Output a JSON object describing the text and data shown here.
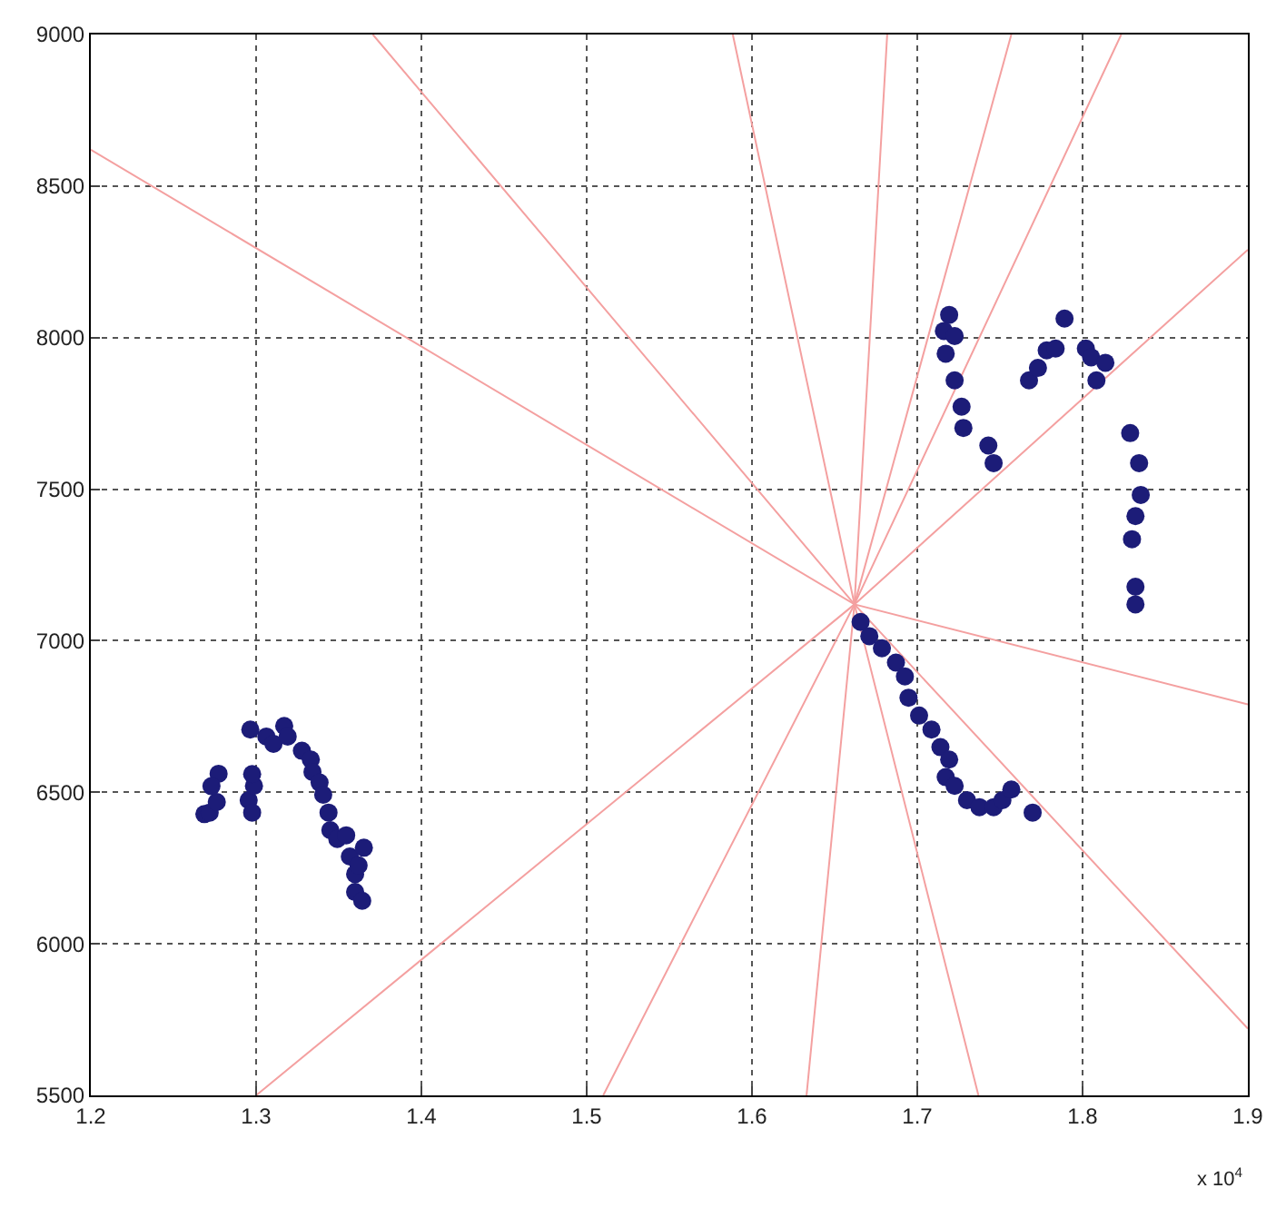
{
  "chart_data": {
    "type": "scatter",
    "grid": true,
    "xlim": [
      1.2,
      1.9
    ],
    "ylim": [
      5500,
      9000
    ],
    "xticks": [
      1.2,
      1.3,
      1.4,
      1.5,
      1.6,
      1.7,
      1.8,
      1.9
    ],
    "yticks": [
      5500,
      6000,
      6500,
      7000,
      7500,
      8000,
      8500,
      9000
    ],
    "annotations": [
      "x 10$^{4}$"
    ],
    "series": [
      {
        "type": "line",
        "marker": "none",
        "line_style": "solid",
        "color": "#f4a0a0",
        "x": [
          1.2,
          1.662,
          1.9
        ],
        "values": [
          8620,
          7120,
          6790
        ]
      },
      {
        "type": "line",
        "marker": "none",
        "line_style": "solid",
        "color": "#f4a0a0",
        "x": [
          1.3706,
          1.662,
          1.9
        ],
        "values": [
          9000,
          7120,
          5720
        ]
      },
      {
        "type": "line",
        "marker": "none",
        "line_style": "solid",
        "color": "#f4a0a0",
        "x": [
          1.5884,
          1.662,
          1.737
        ],
        "values": [
          9000,
          7120,
          5500
        ]
      },
      {
        "type": "line",
        "marker": "none",
        "line_style": "solid",
        "color": "#f4a0a0",
        "x": [
          1.6818,
          1.662,
          1.633
        ],
        "values": [
          9000,
          7120,
          5500
        ]
      },
      {
        "type": "line",
        "marker": "none",
        "line_style": "solid",
        "color": "#f4a0a0",
        "x": [
          1.662,
          1.7569
        ],
        "values": [
          7120,
          9000
        ]
      },
      {
        "type": "line",
        "marker": "none",
        "line_style": "solid",
        "color": "#f4a0a0",
        "x": [
          1.8234,
          1.662,
          1.51
        ],
        "values": [
          9000,
          7120,
          5500
        ]
      },
      {
        "type": "line",
        "marker": "none",
        "line_style": "solid",
        "color": "#f4a0a0",
        "x": [
          1.9,
          1.662,
          1.3
        ],
        "values": [
          8290,
          7120,
          5500
        ]
      },
      {
        "marker": "circle",
        "color": "#1c1c78",
        "x": [
          1.2687,
          1.2719,
          1.2762,
          1.2773,
          1.273,
          1.2955,
          1.2976,
          1.2987,
          1.2976,
          1.2965,
          1.3062,
          1.3105,
          1.317,
          1.3191,
          1.3277,
          1.3331,
          1.3341,
          1.3384,
          1.3406,
          1.3438,
          1.3449,
          1.3491,
          1.3545,
          1.3567,
          1.3599,
          1.3599,
          1.3642,
          1.362,
          1.3652,
          1.6657,
          1.671,
          1.6786,
          1.6871,
          1.6925,
          1.6947,
          1.7011,
          1.7086,
          1.714,
          1.7193,
          1.7172,
          1.7226,
          1.7301,
          1.7376,
          1.7462,
          1.7515,
          1.7569,
          1.7698,
          1.7193,
          1.7161,
          1.7226,
          1.7172,
          1.7226,
          1.7268,
          1.7279,
          1.743,
          1.7462,
          1.7676,
          1.773,
          1.7783,
          1.7837,
          1.7891,
          1.802,
          1.8052,
          1.8084,
          1.8138,
          1.8288,
          1.8342,
          1.8352,
          1.832,
          1.8299,
          1.832,
          1.832
        ],
        "values": [
          6428,
          6433,
          6468,
          6561,
          6520,
          6474,
          6433,
          6521,
          6560,
          6707,
          6684,
          6660,
          6719,
          6684,
          6637,
          6608,
          6567,
          6532,
          6492,
          6433,
          6375,
          6346,
          6358,
          6288,
          6230,
          6171,
          6142,
          6259,
          6317,
          7062,
          7015,
          6975,
          6928,
          6882,
          6812,
          6753,
          6707,
          6649,
          6608,
          6550,
          6521,
          6474,
          6451,
          6451,
          6474,
          6509,
          6433,
          8075,
          8022,
          8005,
          7947,
          7859,
          7772,
          7702,
          7644,
          7586,
          7859,
          7900,
          7958,
          7964,
          8063,
          7964,
          7935,
          7859,
          7917,
          7685,
          7586,
          7481,
          7411,
          7335,
          7178,
          7120
        ]
      }
    ]
  }
}
